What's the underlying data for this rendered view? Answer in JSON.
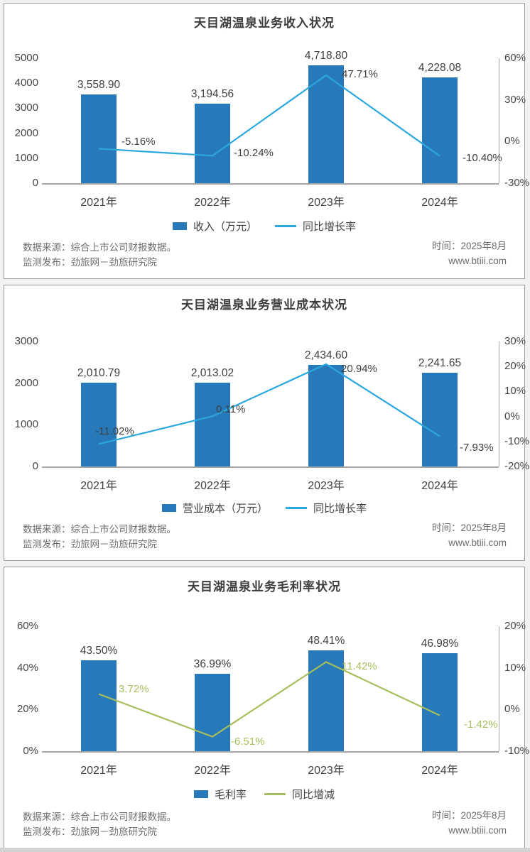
{
  "footer": {
    "source": "数据来源：综合上市公司财报数据。",
    "publisher": "监测发布：劲旅网－劲旅研究院",
    "time": "时间：2025年8月",
    "website": "www.btiii.com"
  },
  "colors": {
    "bar": "#2879B9",
    "line_blue": "#2AA7DE",
    "line_green": "#A6BE5C",
    "dark_label": "#404040",
    "green_label": "#A9C05E",
    "axis": "#A6A6A6"
  },
  "chart_data": [
    {
      "type": "bar+line",
      "title": "天目湖温泉业务收入状况",
      "categories": [
        "2021年",
        "2022年",
        "2023年",
        "2024年"
      ],
      "bar_series": {
        "name": "收入（万元）",
        "values": [
          3558.9,
          3194.56,
          4718.8,
          4228.08
        ],
        "labels": [
          "3,558.90",
          "3,194.56",
          "4,718.80",
          "4,228.08"
        ]
      },
      "line_series": {
        "name": "同比增长率",
        "values": [
          -5.16,
          -10.24,
          47.71,
          -10.4
        ],
        "labels": [
          "-5.16%",
          "-10.24%",
          "47.71%",
          "-10.40%"
        ]
      },
      "left_axis": {
        "min": 0,
        "max": 5000,
        "ticks": [
          {
            "label": "0",
            "value": 0
          },
          {
            "label": "1000",
            "value": 1000
          },
          {
            "label": "2000",
            "value": 2000
          },
          {
            "label": "3000",
            "value": 3000
          },
          {
            "label": "4000",
            "value": 4000
          },
          {
            "label": "5000",
            "value": 5000
          }
        ]
      },
      "right_axis": {
        "min": -30,
        "max": 60,
        "ticks": [
          {
            "label": "-30%",
            "value": -30
          },
          {
            "label": "0%",
            "value": 0
          },
          {
            "label": "30%",
            "value": 30
          },
          {
            "label": "60%",
            "value": 60
          }
        ]
      },
      "line_color": "#2AA7DE",
      "line_label_color": "#404040",
      "grid": false,
      "legend_position": "bottom"
    },
    {
      "type": "bar+line",
      "title": "天目湖温泉业务营业成本状况",
      "categories": [
        "2021年",
        "2022年",
        "2023年",
        "2024年"
      ],
      "bar_series": {
        "name": "营业成本（万元）",
        "values": [
          2010.79,
          2013.02,
          2434.6,
          2241.65
        ],
        "labels": [
          "2,010.79",
          "2,013.02",
          "2,434.60",
          "2,241.65"
        ]
      },
      "line_series": {
        "name": "同比增长率",
        "values": [
          -11.02,
          0.11,
          20.94,
          -7.93
        ],
        "labels": [
          "-11.02%",
          "0.11%",
          "20.94%",
          "-7.93%"
        ]
      },
      "left_axis": {
        "min": 0,
        "max": 3000,
        "ticks": [
          {
            "label": "0",
            "value": 0
          },
          {
            "label": "1000",
            "value": 1000
          },
          {
            "label": "2000",
            "value": 2000
          },
          {
            "label": "3000",
            "value": 3000
          }
        ]
      },
      "right_axis": {
        "min": -20,
        "max": 30,
        "ticks": [
          {
            "label": "-20%",
            "value": -20
          },
          {
            "label": "-10%",
            "value": -10
          },
          {
            "label": "0%",
            "value": 0
          },
          {
            "label": "10%",
            "value": 10
          },
          {
            "label": "20%",
            "value": 20
          },
          {
            "label": "30%",
            "value": 30
          }
        ]
      },
      "line_color": "#2AA7DE",
      "line_label_color": "#404040",
      "grid": false,
      "legend_position": "bottom"
    },
    {
      "type": "bar+line",
      "title": "天目湖温泉业务毛利率状况",
      "categories": [
        "2021年",
        "2022年",
        "2023年",
        "2024年"
      ],
      "bar_series": {
        "name": "毛利率",
        "values": [
          43.5,
          36.99,
          48.41,
          46.98
        ],
        "labels": [
          "43.50%",
          "36.99%",
          "48.41%",
          "46.98%"
        ]
      },
      "line_series": {
        "name": "同比增减",
        "values": [
          3.72,
          -6.51,
          11.42,
          -1.42
        ],
        "labels": [
          "3.72%",
          "-6.51%",
          "11.42%",
          "-1.42%"
        ]
      },
      "left_axis": {
        "min": 0,
        "max": 60,
        "ticks": [
          {
            "label": "0%",
            "value": 0
          },
          {
            "label": "20%",
            "value": 20
          },
          {
            "label": "40%",
            "value": 40
          },
          {
            "label": "60%",
            "value": 60
          }
        ]
      },
      "right_axis": {
        "min": -10,
        "max": 20,
        "ticks": [
          {
            "label": "-10%",
            "value": -10
          },
          {
            "label": "0%",
            "value": 0
          },
          {
            "label": "10%",
            "value": 10
          },
          {
            "label": "20%",
            "value": 20
          }
        ]
      },
      "line_color": "#A6BE5C",
      "line_label_color": "#A9C05E",
      "grid": false,
      "legend_position": "bottom"
    }
  ]
}
